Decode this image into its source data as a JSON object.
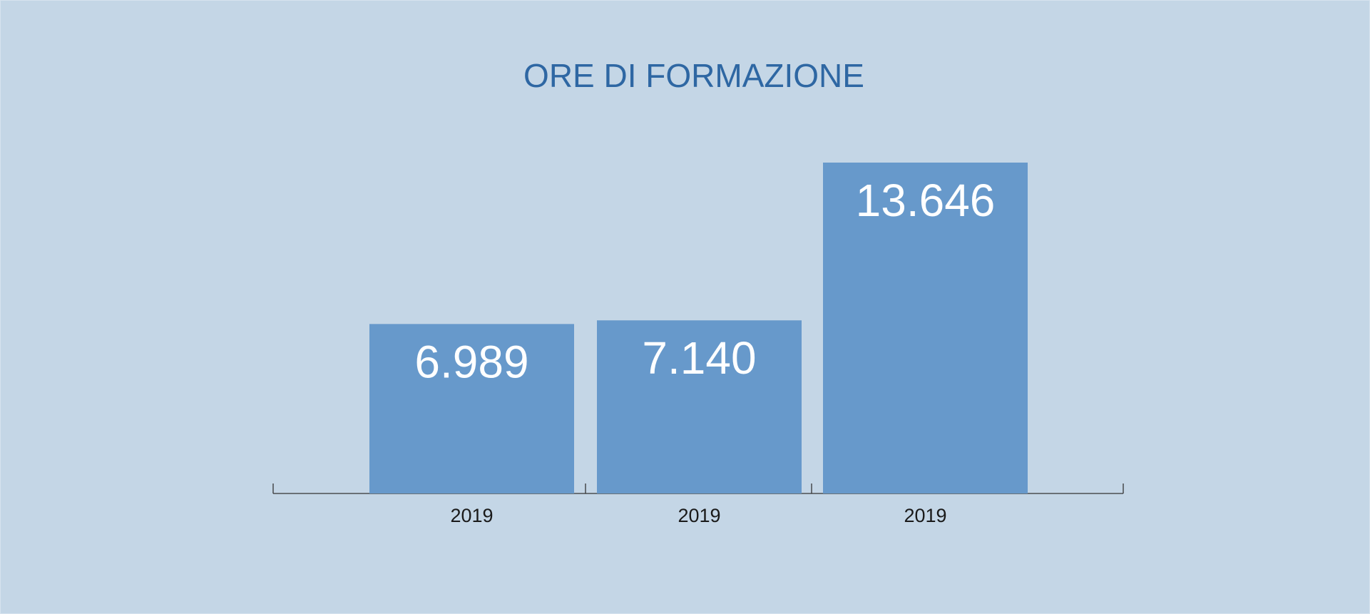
{
  "chart_data": {
    "type": "bar",
    "title": "ORE DI FORMAZIONE",
    "categories": [
      "2019",
      "2019",
      "2019"
    ],
    "values": [
      6989,
      7140,
      13646
    ],
    "value_labels": [
      "6.989",
      "7.140",
      "13.646"
    ],
    "color": "#6799cb"
  }
}
